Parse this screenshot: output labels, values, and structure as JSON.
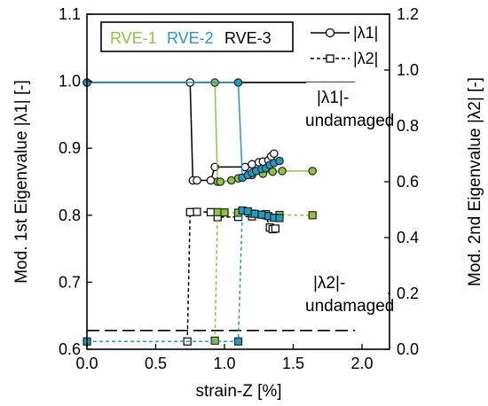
{
  "chart_data": {
    "type": "line",
    "xlabel": "strain-Z [%]",
    "ylabel_left": "Mod. 1st Eigenvalue  |λ1|  [-]",
    "ylabel_right": "Mod. 2nd Eigenvalue  |λ2|  [-]",
    "xlim": [
      0,
      2.2
    ],
    "ylim_left": [
      0.6,
      1.1
    ],
    "ylim_right": [
      0,
      1.2
    ],
    "xticks": [
      "0.0",
      "0.5",
      "1.0",
      "1.5",
      "2.0"
    ],
    "yticks_left": [
      "0.6",
      "0.7",
      "0.8",
      "0.9",
      "1.0",
      "1.1"
    ],
    "yticks_right": [
      "0.0",
      "0.2",
      "0.4",
      "0.6",
      "0.8",
      "1.0",
      "1.2"
    ],
    "rve_legend": [
      {
        "label": "RVE-1",
        "color": "#8cc63f"
      },
      {
        "label": "RVE-2",
        "color": "#1f9cc2"
      },
      {
        "label": "RVE-3",
        "color": "#000000"
      }
    ],
    "marker_legend": [
      {
        "label": "|λ1|",
        "marker": "circle",
        "dash": "solid"
      },
      {
        "label": "|λ2|",
        "marker": "square",
        "dash": "dashed"
      }
    ],
    "annotations": {
      "l1_undamaged": {
        "sym": "|λ1|-",
        "text": "undamaged"
      },
      "l2_undamaged": {
        "sym": "|λ2|-",
        "text": "undamaged"
      }
    },
    "reference_lines": [
      {
        "axis": "left",
        "y": 0.998,
        "dash": "solid",
        "x_start": 0.0,
        "x_end": 1.95
      },
      {
        "axis": "left",
        "y": 0.628,
        "dash": "dashed",
        "x_start": 0.0,
        "x_end": 1.95
      }
    ],
    "series": [
      {
        "rve": "RVE-3",
        "eig": "l1",
        "color": "#000000",
        "fill": "#ffffff",
        "marker": "circle",
        "dash": "solid",
        "x": [
          0.0,
          0.75,
          0.77,
          0.8,
          0.9,
          0.93,
          1.15,
          1.2,
          1.25,
          1.28,
          1.32,
          1.34,
          1.36
        ],
        "y": [
          0.998,
          0.998,
          0.852,
          0.852,
          0.852,
          0.872,
          0.872,
          0.876,
          0.879,
          0.88,
          0.882,
          0.888,
          0.892
        ]
      },
      {
        "rve": "RVE-1",
        "eig": "l1",
        "color": "#8cc63f",
        "fill": "#8cc63f",
        "marker": "circle",
        "dash": "solid",
        "x": [
          0.93,
          0.95,
          0.97,
          1.05,
          1.1,
          1.2,
          1.28,
          1.35,
          1.42,
          1.64
        ],
        "y": [
          0.998,
          0.85,
          0.85,
          0.852,
          0.855,
          0.86,
          0.862,
          0.865,
          0.866,
          0.866
        ]
      },
      {
        "rve": "RVE-2",
        "eig": "l1",
        "color": "#1f9cc2",
        "fill": "#1f9cc2",
        "marker": "circle",
        "dash": "solid",
        "x": [
          0.0,
          1.1,
          1.13,
          1.17,
          1.2,
          1.23,
          1.27,
          1.3,
          1.33,
          1.36,
          1.4
        ],
        "y": [
          0.998,
          0.998,
          0.856,
          0.86,
          0.863,
          0.866,
          0.869,
          0.87,
          0.875,
          0.878,
          0.881
        ]
      },
      {
        "rve": "RVE-3",
        "eig": "l2",
        "color": "#000000",
        "fill": "#ffffff",
        "marker": "square",
        "dash": "dashed",
        "x": [
          0.73,
          0.75,
          0.8,
          0.9,
          0.95,
          1.1,
          1.2,
          1.3,
          1.33,
          1.35,
          1.37
        ],
        "y": [
          0.028,
          0.491,
          0.492,
          0.491,
          0.473,
          0.474,
          0.476,
          0.48,
          0.436,
          0.43,
          0.432
        ]
      },
      {
        "rve": "RVE-1",
        "eig": "l2",
        "color": "#8cc63f",
        "fill": "#8cc63f",
        "marker": "square",
        "dash": "dashed",
        "x": [
          0.93,
          0.95,
          1.0,
          1.1,
          1.2,
          1.3,
          1.4,
          1.64
        ],
        "y": [
          0.031,
          0.491,
          0.49,
          0.489,
          0.486,
          0.484,
          0.481,
          0.48
        ]
      },
      {
        "rve": "RVE-2",
        "eig": "l2",
        "color": "#1f9cc2",
        "fill": "#1f9cc2",
        "marker": "square",
        "dash": "dashed",
        "x": [
          0.0,
          1.1,
          1.13,
          1.17,
          1.22,
          1.27,
          1.32,
          1.36,
          1.4
        ],
        "y": [
          0.028,
          0.028,
          0.497,
          0.494,
          0.485,
          0.482,
          0.477,
          0.471,
          0.47
        ]
      }
    ]
  }
}
